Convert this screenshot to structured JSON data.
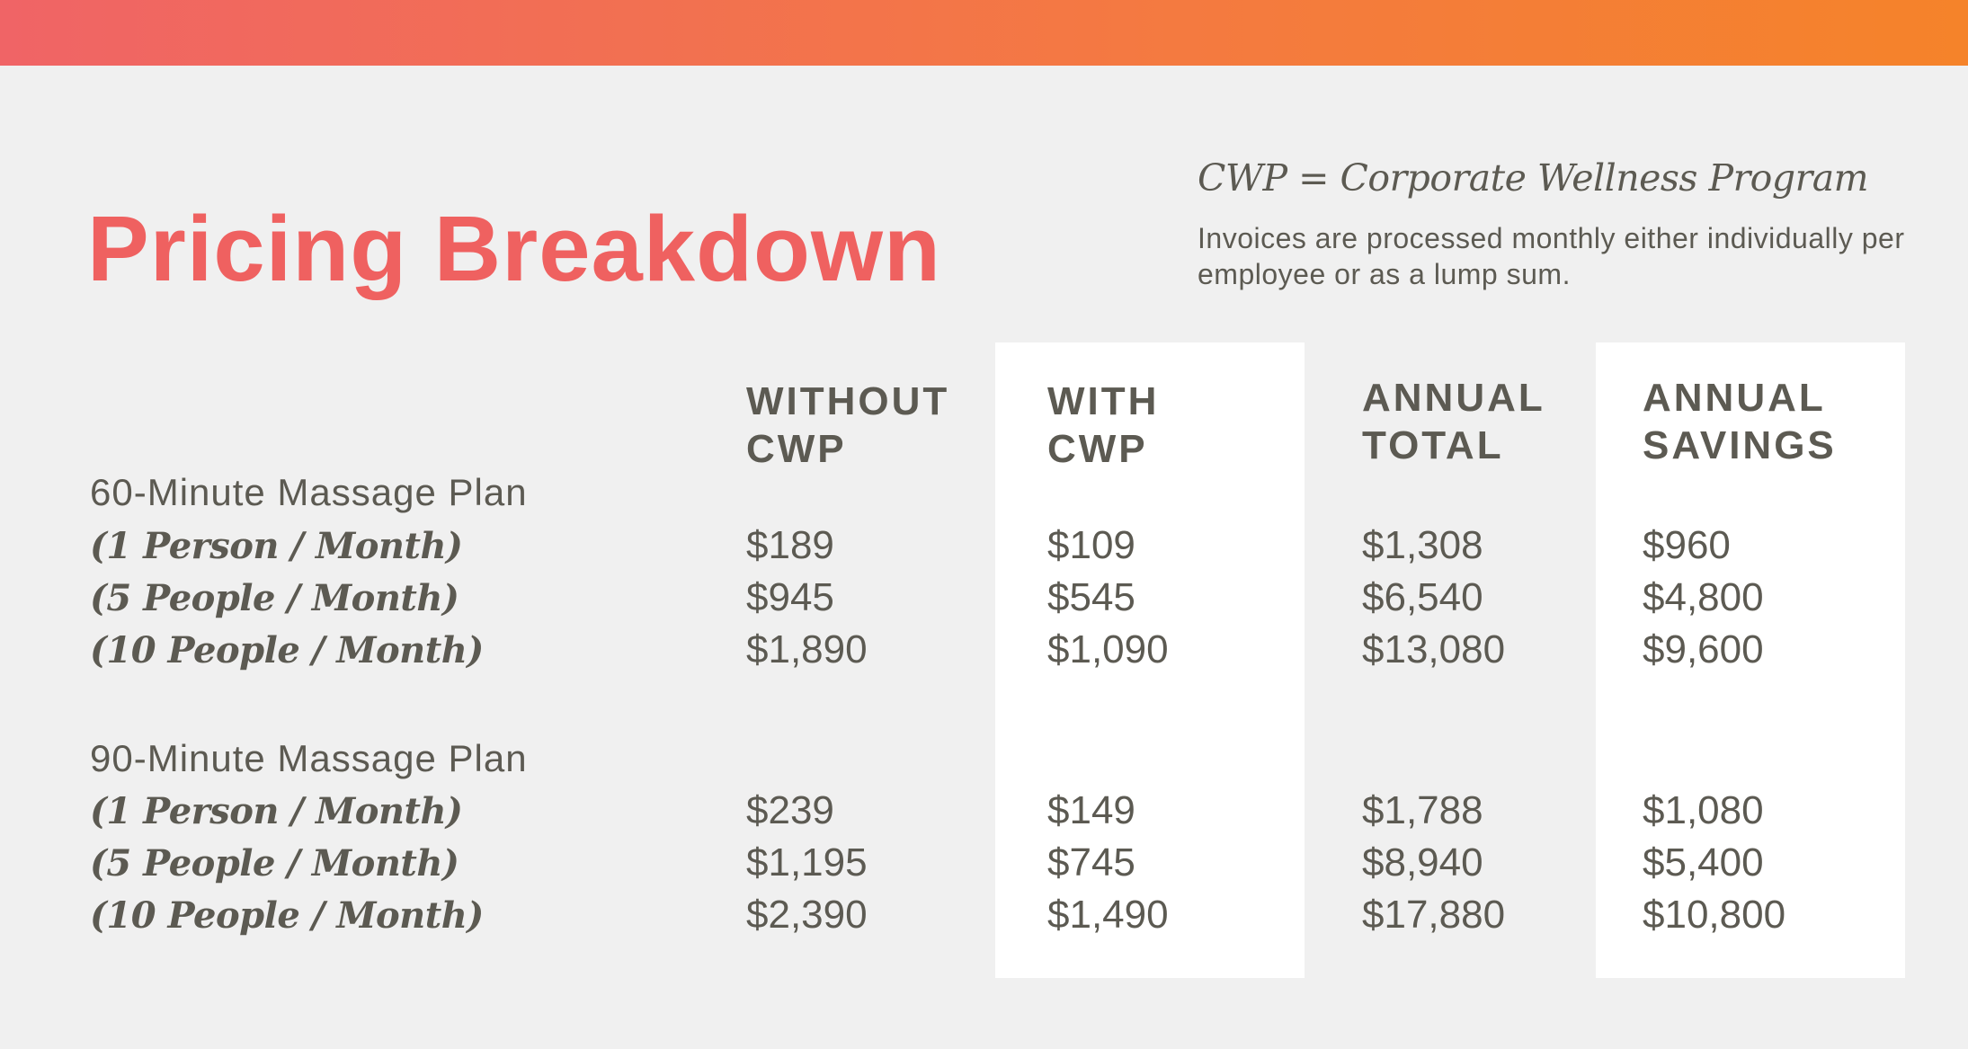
{
  "title": "Pricing Breakdown",
  "definition": "CWP = Corporate Wellness Program",
  "note": "Invoices are processed monthly either individually per employee or as a lump sum.",
  "columns": [
    {
      "line1": "WITHOUT",
      "line2": "CWP"
    },
    {
      "line1": "WITH",
      "line2": "CWP"
    },
    {
      "line1": "ANNUAL",
      "line2": "TOTAL"
    },
    {
      "line1": "ANNUAL",
      "line2": "SAVINGS"
    }
  ],
  "plans": [
    {
      "name": "60-Minute Massage Plan",
      "rows": [
        {
          "label": "(1 Person / Month)",
          "values": [
            "$189",
            "$109",
            "$1,308",
            "$960"
          ]
        },
        {
          "label": "(5 People / Month)",
          "values": [
            "$945",
            "$545",
            "$6,540",
            "$4,800"
          ]
        },
        {
          "label": "(10 People / Month)",
          "values": [
            "$1,890",
            "$1,090",
            "$13,080",
            "$9,600"
          ]
        }
      ]
    },
    {
      "name": "90-Minute Massage Plan",
      "rows": [
        {
          "label": "(1 Person / Month)",
          "values": [
            "$239",
            "$149",
            "$1,788",
            "$1,080"
          ]
        },
        {
          "label": "(5 People / Month)",
          "values": [
            "$1,195",
            "$745",
            "$8,940",
            "$5,400"
          ]
        },
        {
          "label": "(10 People / Month)",
          "values": [
            "$2,390",
            "$1,490",
            "$17,880",
            "$10,800"
          ]
        }
      ]
    }
  ],
  "colors": {
    "accent": "#ef6160",
    "text": "#5c5a52",
    "background": "#f0f0f0",
    "panel": "#ffffff"
  }
}
